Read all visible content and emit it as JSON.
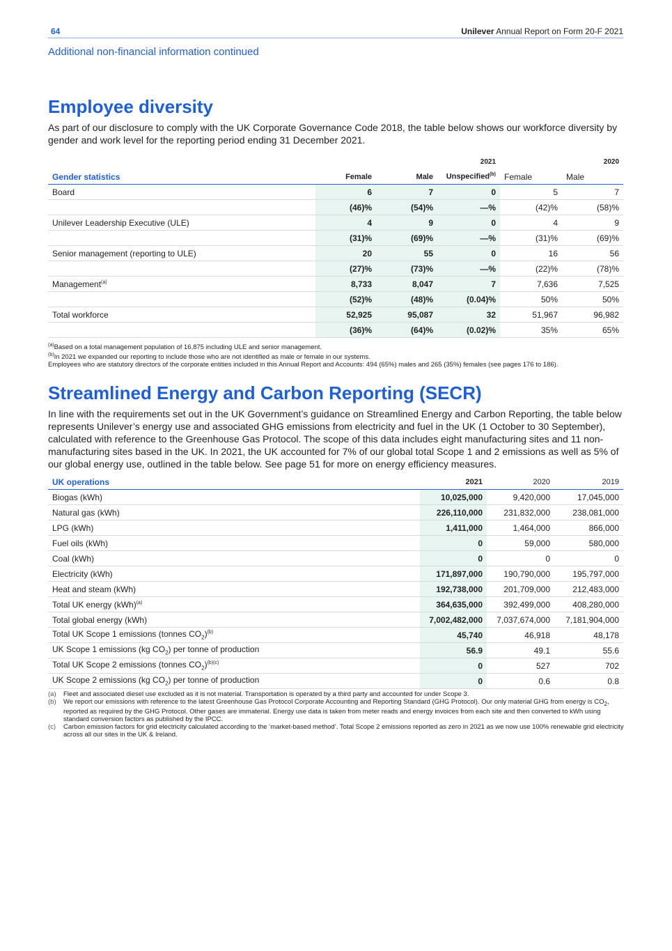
{
  "header": {
    "page_number": "64",
    "brand": "Unilever",
    "report": "Annual Report on Form 20-F 2021"
  },
  "section_label": "Additional non-financial information continued",
  "diversity": {
    "title": "Employee diversity",
    "intro": "As part of our disclosure to comply with the UK Corporate Governance Code 2018, the table below shows our workforce diversity by gender and work level for the reporting period ending 31 December 2021.",
    "table": {
      "year_headers": [
        "2021",
        "2020"
      ],
      "columns": [
        {
          "text": "Gender statistics"
        },
        {
          "text": "Female"
        },
        {
          "text": "Male"
        },
        {
          "text": "Unspecified",
          "note": "(b)"
        },
        {
          "text": "Female"
        },
        {
          "text": "Male"
        }
      ],
      "rows": [
        {
          "label": "Board",
          "cells": [
            "6",
            "7",
            "0",
            "5",
            "7"
          ]
        },
        {
          "cells": [
            "(46)%",
            "(54)%",
            "—%",
            "(42)%",
            "(58)%"
          ]
        },
        {
          "label": "Unilever Leadership Executive (ULE)",
          "cells": [
            "4",
            "9",
            "0",
            "4",
            "9"
          ]
        },
        {
          "cells": [
            "(31)%",
            "(69)%",
            "—%",
            "(31)%",
            "(69)%"
          ]
        },
        {
          "label": "Senior management (reporting to ULE)",
          "cells": [
            "20",
            "55",
            "0",
            "16",
            "56"
          ]
        },
        {
          "cells": [
            "(27)%",
            "(73)%",
            "—%",
            "(22)%",
            "(78)%"
          ]
        },
        {
          "label": "Management",
          "note": "(a)",
          "cells": [
            "8,733",
            "8,047",
            "7",
            "7,636",
            "7,525"
          ]
        },
        {
          "cells": [
            "(52)%",
            "(48)%",
            "(0.04)%",
            "50%",
            "50%"
          ]
        },
        {
          "label": "Total workforce",
          "cells": [
            "52,925",
            "95,087",
            "32",
            "51,967",
            "96,982"
          ]
        },
        {
          "cells": [
            "(36)%",
            "(64)%",
            "(0.02)%",
            "35%",
            "65%"
          ]
        }
      ]
    },
    "footnotes": [
      {
        "mark": "(a)",
        "text": "Based on a total management population of 16,875 including ULE and senior management."
      },
      {
        "mark": "(b)",
        "text": "In 2021 we expanded our reporting to include those who are not identified as male or female in our systems."
      },
      {
        "text": "Employees who are statutory directors of the corporate entities included in this Annual Report and Accounts: 494 (65%) males and 265 (35%) females (see pages 176 to 186)."
      }
    ]
  },
  "secr": {
    "title": "Streamlined Energy and Carbon Reporting (SECR)",
    "intro": "In line with the requirements set out in the UK Government’s guidance on Streamlined Energy and Carbon Reporting, the table below represents Unilever’s energy use and associated GHG emissions from electricity and fuel in the UK (1 October to 30 September), calculated with reference to the Greenhouse Gas Protocol. The scope of this data includes eight manufacturing sites and 11 non-manufacturing sites based in the UK. In 2021, the UK accounted for 7% of our global total Scope 1 and 2 emissions as well as 5% of our global energy use, outlined in the table below. See page 51 for more on energy efficiency measures.",
    "table": {
      "columns": [
        "UK operations",
        "2021",
        "2020",
        "2019"
      ],
      "rows": [
        {
          "label": "Biogas (kWh)",
          "cells": [
            "10,025,000",
            "9,420,000",
            "17,045,000"
          ]
        },
        {
          "label": "Natural gas (kWh)",
          "cells": [
            "226,110,000",
            "231,832,000",
            "238,081,000"
          ]
        },
        {
          "label": "LPG (kWh)",
          "cells": [
            "1,411,000",
            "1,464,000",
            "866,000"
          ]
        },
        {
          "label": "Fuel oils (kWh)",
          "cells": [
            "0",
            "59,000",
            "580,000"
          ]
        },
        {
          "label": "Coal (kWh)",
          "cells": [
            "0",
            "0",
            "0"
          ]
        },
        {
          "label": "Electricity (kWh)",
          "cells": [
            "171,897,000",
            "190,790,000",
            "195,797,000"
          ]
        },
        {
          "label": "Heat and steam (kWh)",
          "cells": [
            "192,738,000",
            "201,709,000",
            "212,483,000"
          ]
        },
        {
          "label": "Total UK energy (kWh)",
          "note": "(a)",
          "cells": [
            "364,635,000",
            "392,499,000",
            "408,280,000"
          ]
        },
        {
          "label": "Total global energy (kWh)",
          "cells": [
            "7,002,482,000",
            "7,037,674,000",
            "7,181,904,000"
          ]
        },
        {
          "label": "Total UK Scope 1 emissions (tonnes CO",
          "sub": "2",
          "post": ")",
          "note": "(b)",
          "cells": [
            "45,740",
            "46,918",
            "48,178"
          ]
        },
        {
          "label": "UK Scope 1 emissions (kg CO",
          "sub": "2",
          "post": ") per tonne of production",
          "cells": [
            "56.9",
            "49.1",
            "55.6"
          ]
        },
        {
          "label": "Total UK Scope 2 emissions (tonnes CO",
          "sub": "2",
          "post": ")",
          "note": "(b)(c)",
          "cells": [
            "0",
            "527",
            "702"
          ]
        },
        {
          "label": "UK Scope 2 emissions (kg CO",
          "sub": "2",
          "post": ") per tonne of production",
          "cells": [
            "0",
            "0.6",
            "0.8"
          ]
        }
      ]
    },
    "footnotes": [
      {
        "mark": "(a)",
        "text": "Fleet and associated diesel use excluded as it is not material. Transportation is operated by a third party and accounted for under Scope 3."
      },
      {
        "mark": "(b)",
        "text": "We report our emissions with reference to the latest Greenhouse Gas Protocol Corporate Accounting and Reporting Standard (GHG Protocol). Our only material GHG from energy is CO",
        "sub": "2",
        "post": ", reported as required by the GHG Protocol. Other gases are immaterial. Energy use data is taken from meter reads and energy invoices from each site and then converted to kWh using standard conversion factors as published by the IPCC."
      },
      {
        "mark": "(c)",
        "text": "Carbon emission factors for grid electricity calculated according to the ‘market-based method’. Total Scope 2 emissions reported as zero in 2021 as we now use 100% renewable grid electricity across all our sites in the UK & Ireland."
      }
    ]
  }
}
